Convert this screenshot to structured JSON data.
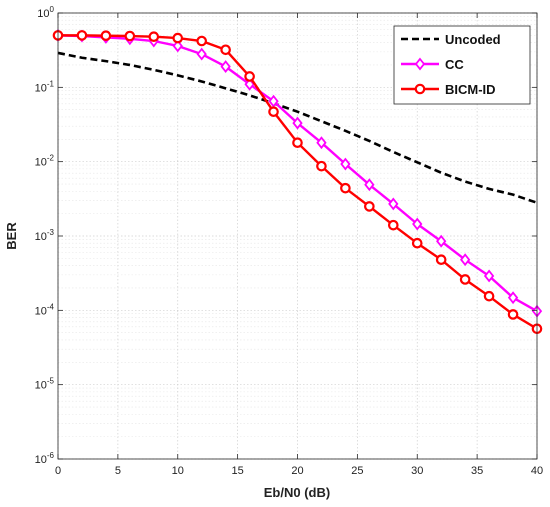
{
  "chart_data": {
    "type": "line",
    "title": "",
    "xlabel": "Eb/N0 (dB)",
    "ylabel": "BER",
    "xlim": [
      0,
      40
    ],
    "ylim": [
      1e-06,
      1
    ],
    "yscale": "log",
    "grid": true,
    "legend_position": "top-right",
    "x_ticks": [
      "0",
      "5",
      "10",
      "15",
      "20",
      "25",
      "30",
      "35",
      "40"
    ],
    "y_ticks": [
      {
        "base": "10",
        "exp": "0"
      },
      {
        "base": "10",
        "exp": "-1"
      },
      {
        "base": "10",
        "exp": "-2"
      },
      {
        "base": "10",
        "exp": "-3"
      },
      {
        "base": "10",
        "exp": "-4"
      },
      {
        "base": "10",
        "exp": "-5"
      },
      {
        "base": "10",
        "exp": "-6"
      }
    ],
    "series": [
      {
        "name": "Uncoded",
        "color": "#000000",
        "style": "dashed",
        "marker": "none",
        "x": [
          0,
          2,
          4,
          6,
          8,
          10,
          12,
          14,
          16,
          18,
          20,
          22,
          24,
          26,
          28,
          30,
          32,
          34,
          36,
          38,
          40
        ],
        "y": [
          0.29,
          0.25,
          0.225,
          0.2,
          0.172,
          0.145,
          0.12,
          0.097,
          0.078,
          0.061,
          0.047,
          0.035,
          0.026,
          0.019,
          0.0135,
          0.0098,
          0.0071,
          0.0054,
          0.0043,
          0.0036,
          0.0028
        ]
      },
      {
        "name": "CC",
        "color": "#ff00ff",
        "style": "solid",
        "marker": "diamond",
        "x": [
          0,
          2,
          4,
          6,
          8,
          10,
          12,
          14,
          16,
          18,
          20,
          22,
          24,
          26,
          28,
          30,
          32,
          34,
          36,
          38,
          40
        ],
        "y": [
          0.5,
          0.49,
          0.47,
          0.45,
          0.42,
          0.36,
          0.28,
          0.19,
          0.11,
          0.065,
          0.033,
          0.018,
          0.0093,
          0.0049,
          0.0027,
          0.00145,
          0.00085,
          0.00048,
          0.00029,
          0.000148,
          9.75e-05
        ]
      },
      {
        "name": "BICM-ID",
        "color": "#ff0000",
        "style": "solid",
        "marker": "circle",
        "x": [
          0,
          2,
          4,
          6,
          8,
          10,
          12,
          14,
          16,
          18,
          20,
          22,
          24,
          26,
          28,
          30,
          32,
          34,
          36,
          38,
          40
        ],
        "y": [
          0.5,
          0.5,
          0.495,
          0.49,
          0.48,
          0.46,
          0.42,
          0.32,
          0.14,
          0.047,
          0.018,
          0.0087,
          0.0044,
          0.0025,
          0.0014,
          0.0008,
          0.00048,
          0.00026,
          0.000155,
          8.8e-05,
          5.65e-05
        ]
      }
    ]
  }
}
